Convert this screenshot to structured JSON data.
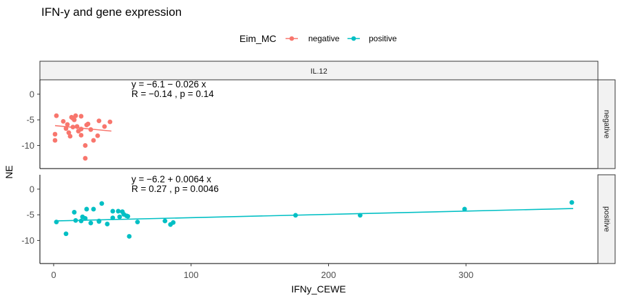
{
  "chart_data": {
    "type": "scatter",
    "title": "IFN-y and gene expression",
    "xlabel": "IFNy_CEWE",
    "ylabel": "NE",
    "xlim": [
      -10,
      396
    ],
    "ylim": [
      -14.5,
      2.8
    ],
    "x_ticks": [
      0,
      100,
      200,
      300
    ],
    "y_ticks": [
      0,
      -5,
      -10
    ],
    "column_strip": "IL.12",
    "legend": {
      "title": "Eim_MC",
      "placement": "top",
      "entries": [
        {
          "label": "negative",
          "color": "#F8766D"
        },
        {
          "label": "positive",
          "color": "#00BFC4"
        }
      ]
    },
    "panels": [
      {
        "strip": "negative",
        "color": "#F8766D",
        "equation": "y = −6.1 − 0.026 x",
        "stats": "R = −0.14 , p = 0.14",
        "fit": {
          "intercept": -6.1,
          "slope": -0.026,
          "x_range": [
            1,
            42
          ]
        },
        "points": [
          [
            1,
            -7.8
          ],
          [
            1,
            -9.0
          ],
          [
            2,
            -4.2
          ],
          [
            7,
            -5.3
          ],
          [
            9,
            -6.7
          ],
          [
            10,
            -5.9
          ],
          [
            11,
            -7.5
          ],
          [
            12,
            -8.2
          ],
          [
            13,
            -4.5
          ],
          [
            14,
            -6.4
          ],
          [
            14,
            -4.7
          ],
          [
            15,
            -5.0
          ],
          [
            16,
            -4.2
          ],
          [
            17,
            -6.3
          ],
          [
            17,
            -6.3
          ],
          [
            18,
            -7.2
          ],
          [
            20,
            -4.3
          ],
          [
            20,
            -6.8
          ],
          [
            20,
            -8.0
          ],
          [
            23,
            -10.0
          ],
          [
            23,
            -12.5
          ],
          [
            24,
            -6.0
          ],
          [
            25,
            -5.8
          ],
          [
            27,
            -6.9
          ],
          [
            29,
            -9.0
          ],
          [
            32,
            -8.1
          ],
          [
            33,
            -5.2
          ],
          [
            37,
            -6.3
          ],
          [
            41,
            -5.4
          ]
        ]
      },
      {
        "strip": "positive",
        "color": "#00BFC4",
        "equation": "y = −6.2 + 0.0064 x",
        "stats": "R = 0.27 , p = 0.0046",
        "fit": {
          "intercept": -6.2,
          "slope": 0.0064,
          "x_range": [
            1,
            378
          ]
        },
        "points": [
          [
            2,
            -6.4
          ],
          [
            9,
            -8.7
          ],
          [
            15,
            -4.5
          ],
          [
            16,
            -6.1
          ],
          [
            20,
            -6.2
          ],
          [
            21,
            -5.4
          ],
          [
            23,
            -5.7
          ],
          [
            24,
            -3.9
          ],
          [
            27,
            -6.6
          ],
          [
            29,
            -3.9
          ],
          [
            33,
            -6.2
          ],
          [
            33,
            -6.3
          ],
          [
            35,
            -2.8
          ],
          [
            39,
            -6.8
          ],
          [
            43,
            -5.6
          ],
          [
            43,
            -4.3
          ],
          [
            47,
            -4.3
          ],
          [
            48,
            -5.4
          ],
          [
            50,
            -4.4
          ],
          [
            51,
            -4.9
          ],
          [
            53,
            -5.2
          ],
          [
            54,
            -5.3
          ],
          [
            55,
            -9.2
          ],
          [
            61,
            -6.4
          ],
          [
            81,
            -6.2
          ],
          [
            85,
            -6.9
          ],
          [
            87,
            -6.5
          ],
          [
            176,
            -5.1
          ],
          [
            223,
            -5.1
          ],
          [
            299,
            -3.9
          ],
          [
            377,
            -2.6
          ]
        ]
      }
    ]
  }
}
